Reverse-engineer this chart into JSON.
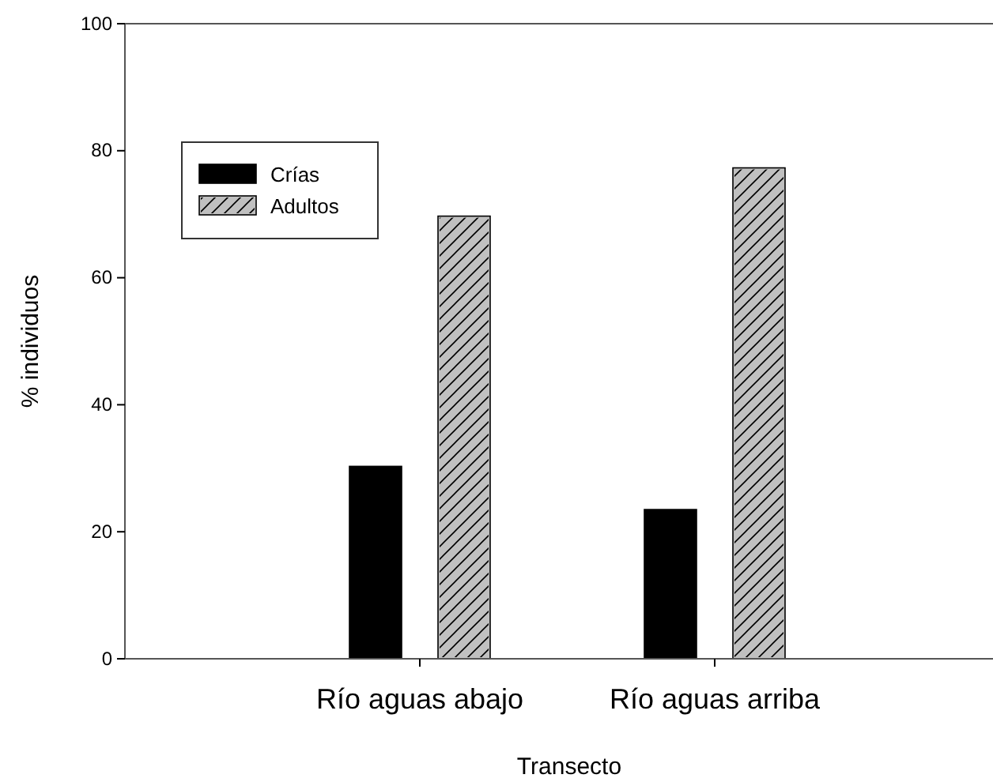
{
  "chart_data": {
    "type": "bar",
    "xlabel": "Transecto",
    "ylabel": "% individuos",
    "categories": [
      "Río aguas abajo",
      "Río aguas arriba"
    ],
    "series": [
      {
        "name": "Crías",
        "color": "#000000",
        "values": [
          30.3,
          23.5
        ]
      },
      {
        "name": "Adultos",
        "color": "#c0c0c0",
        "values": [
          69.7,
          77.3
        ]
      }
    ],
    "ylim": [
      0,
      100
    ],
    "yticks": [
      0,
      20,
      40,
      60,
      80,
      100
    ],
    "grid": false,
    "legend": "top left"
  }
}
